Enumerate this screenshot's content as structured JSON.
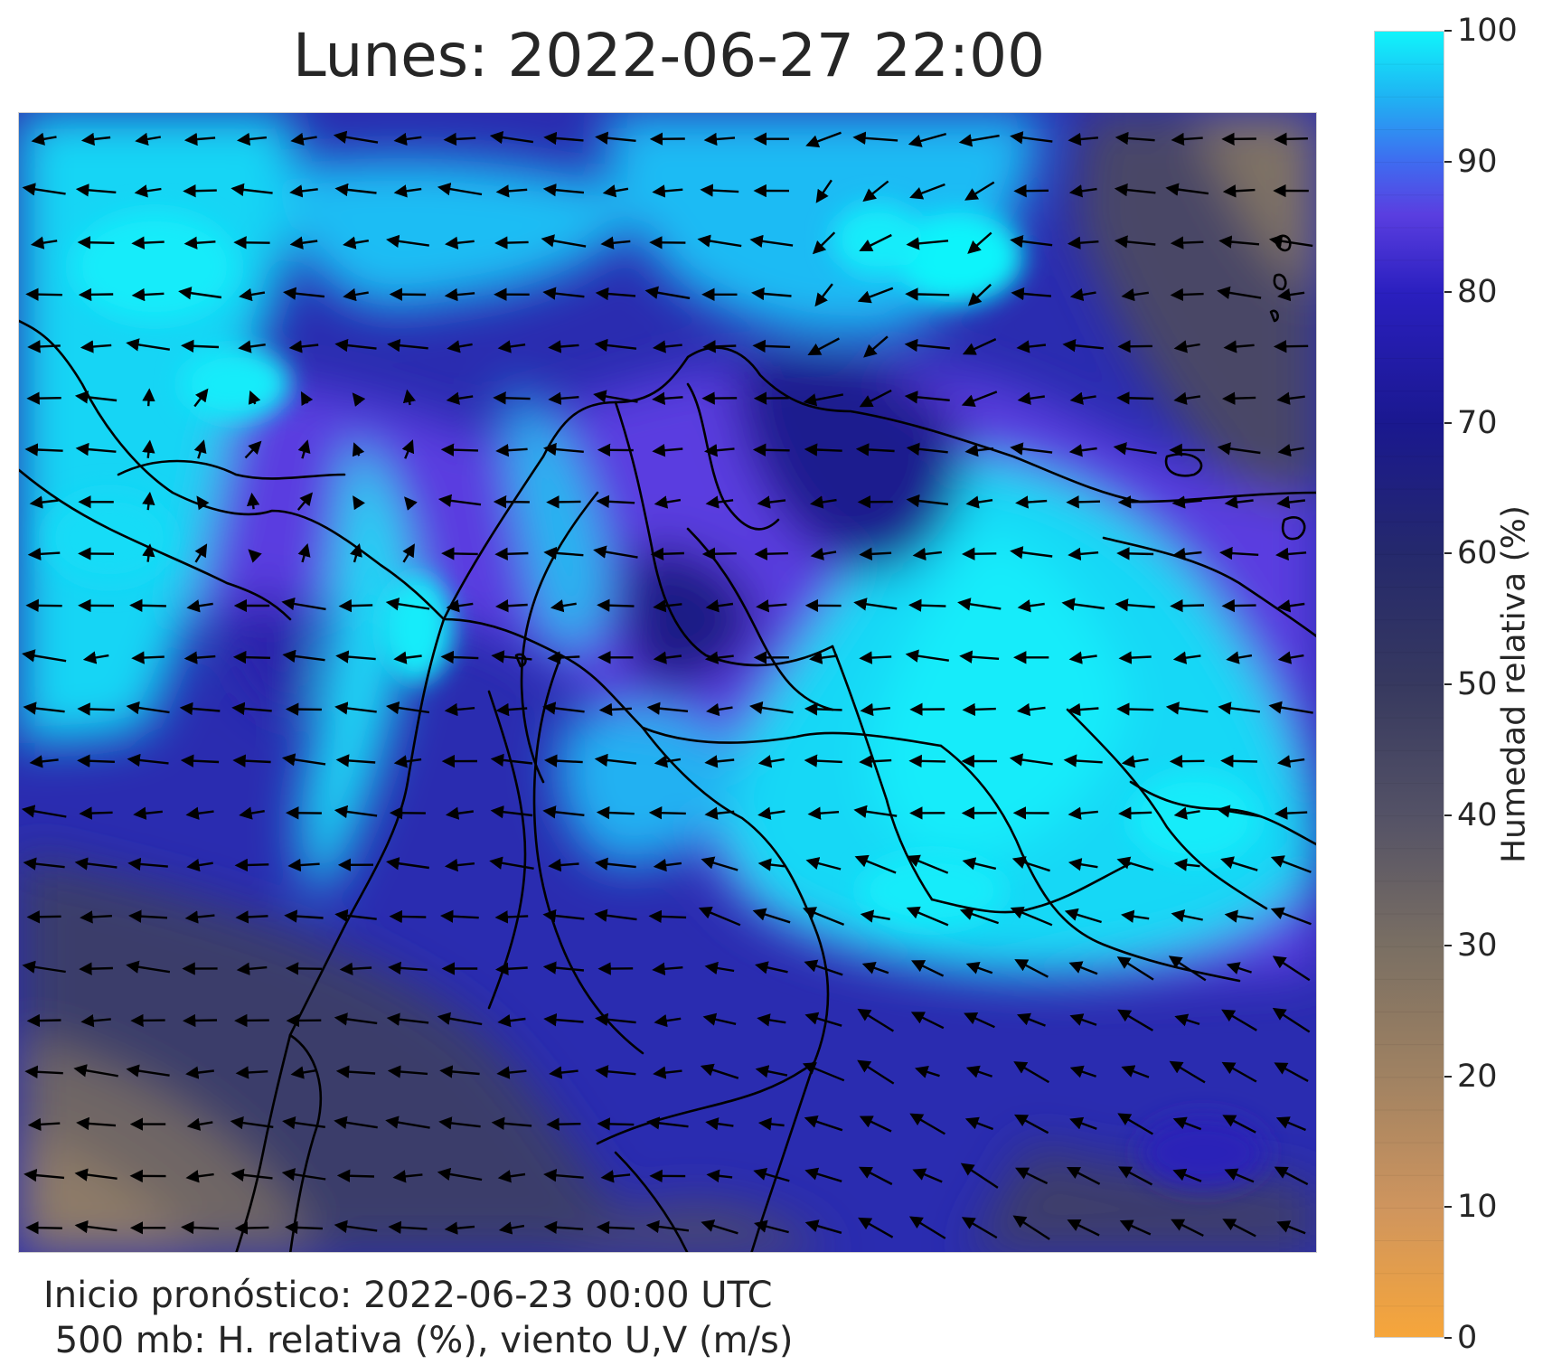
{
  "title": "Lunes: 2022-06-27 22:00",
  "footer": {
    "line1": "Inicio pronóstico: 2022-06-23 00:00 UTC",
    "line2": " 500 mb: H. relativa (%), viento U,V (m/s)"
  },
  "colorbar": {
    "label": "Humedad relativa (%)",
    "ticks": [
      "0",
      "10",
      "20",
      "30",
      "40",
      "50",
      "60",
      "70",
      "80",
      "90",
      "100"
    ],
    "colors": {
      "0": "#f7a63a",
      "10": "#cf955e",
      "20": "#a08262",
      "30": "#7a6f63",
      "40": "#545266",
      "50": "#37395f",
      "60": "#25296c",
      "70": "#1a188f",
      "80": "#2a1fbf",
      "90": "#3f6bf0",
      "100": "#10f4fb"
    }
  },
  "map": {
    "variable": "500 mb relative humidity with U,V wind vectors",
    "wind_direction": "predominantly easterly (arrows pointing west)"
  }
}
